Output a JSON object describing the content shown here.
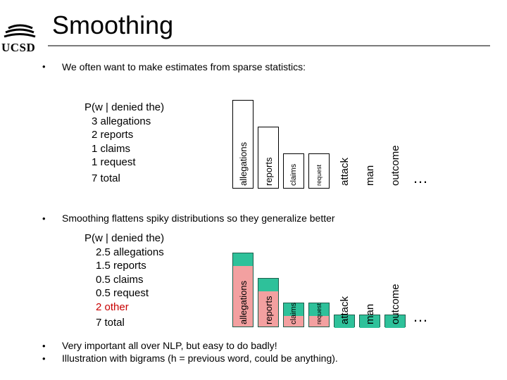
{
  "slide": {
    "title": "Smoothing",
    "logo_text": "UCSD"
  },
  "bullets": {
    "b1": "We often want to make estimates from sparse statistics:",
    "b2": "Smoothing flattens spiky distributions so they generalize better",
    "b3": "Very important all over NLP, but easy to do badly!",
    "b4": "Illustration with bigrams (h = previous word, could be anything).",
    "symbol": "•"
  },
  "block1": {
    "header": "P(w | denied the)",
    "lines": [
      "3 allegations",
      "2 reports",
      "1 claims",
      "1 request"
    ],
    "total": "7 total"
  },
  "block2": {
    "header": "P(w | denied the)",
    "lines": [
      "2.5 allegations",
      "1.5 reports",
      "0.5 claims",
      "0.5 request"
    ],
    "other": "2 other",
    "total": "7 total"
  },
  "chart_data": [
    {
      "type": "bar",
      "categories": [
        "allegations",
        "reports",
        "claims",
        "request",
        "attack",
        "man",
        "outcome"
      ],
      "values": [
        3,
        2,
        1,
        1,
        0,
        0,
        0
      ],
      "ellipsis": "…"
    },
    {
      "type": "bar",
      "categories": [
        "allegations",
        "reports",
        "claims",
        "request",
        "attack",
        "man",
        "outcome"
      ],
      "values": [
        2.5,
        1.5,
        0.5,
        0.5,
        0,
        0,
        0
      ],
      "smoothed_mass": [
        0.5,
        0.5,
        0.5,
        0.5,
        0.5,
        0.5,
        0.5
      ],
      "ellipsis": "…",
      "colors": {
        "observed": "#f3a0a0",
        "smoothed": "#2ec19a",
        "outline": "#1c5f4c"
      }
    }
  ]
}
